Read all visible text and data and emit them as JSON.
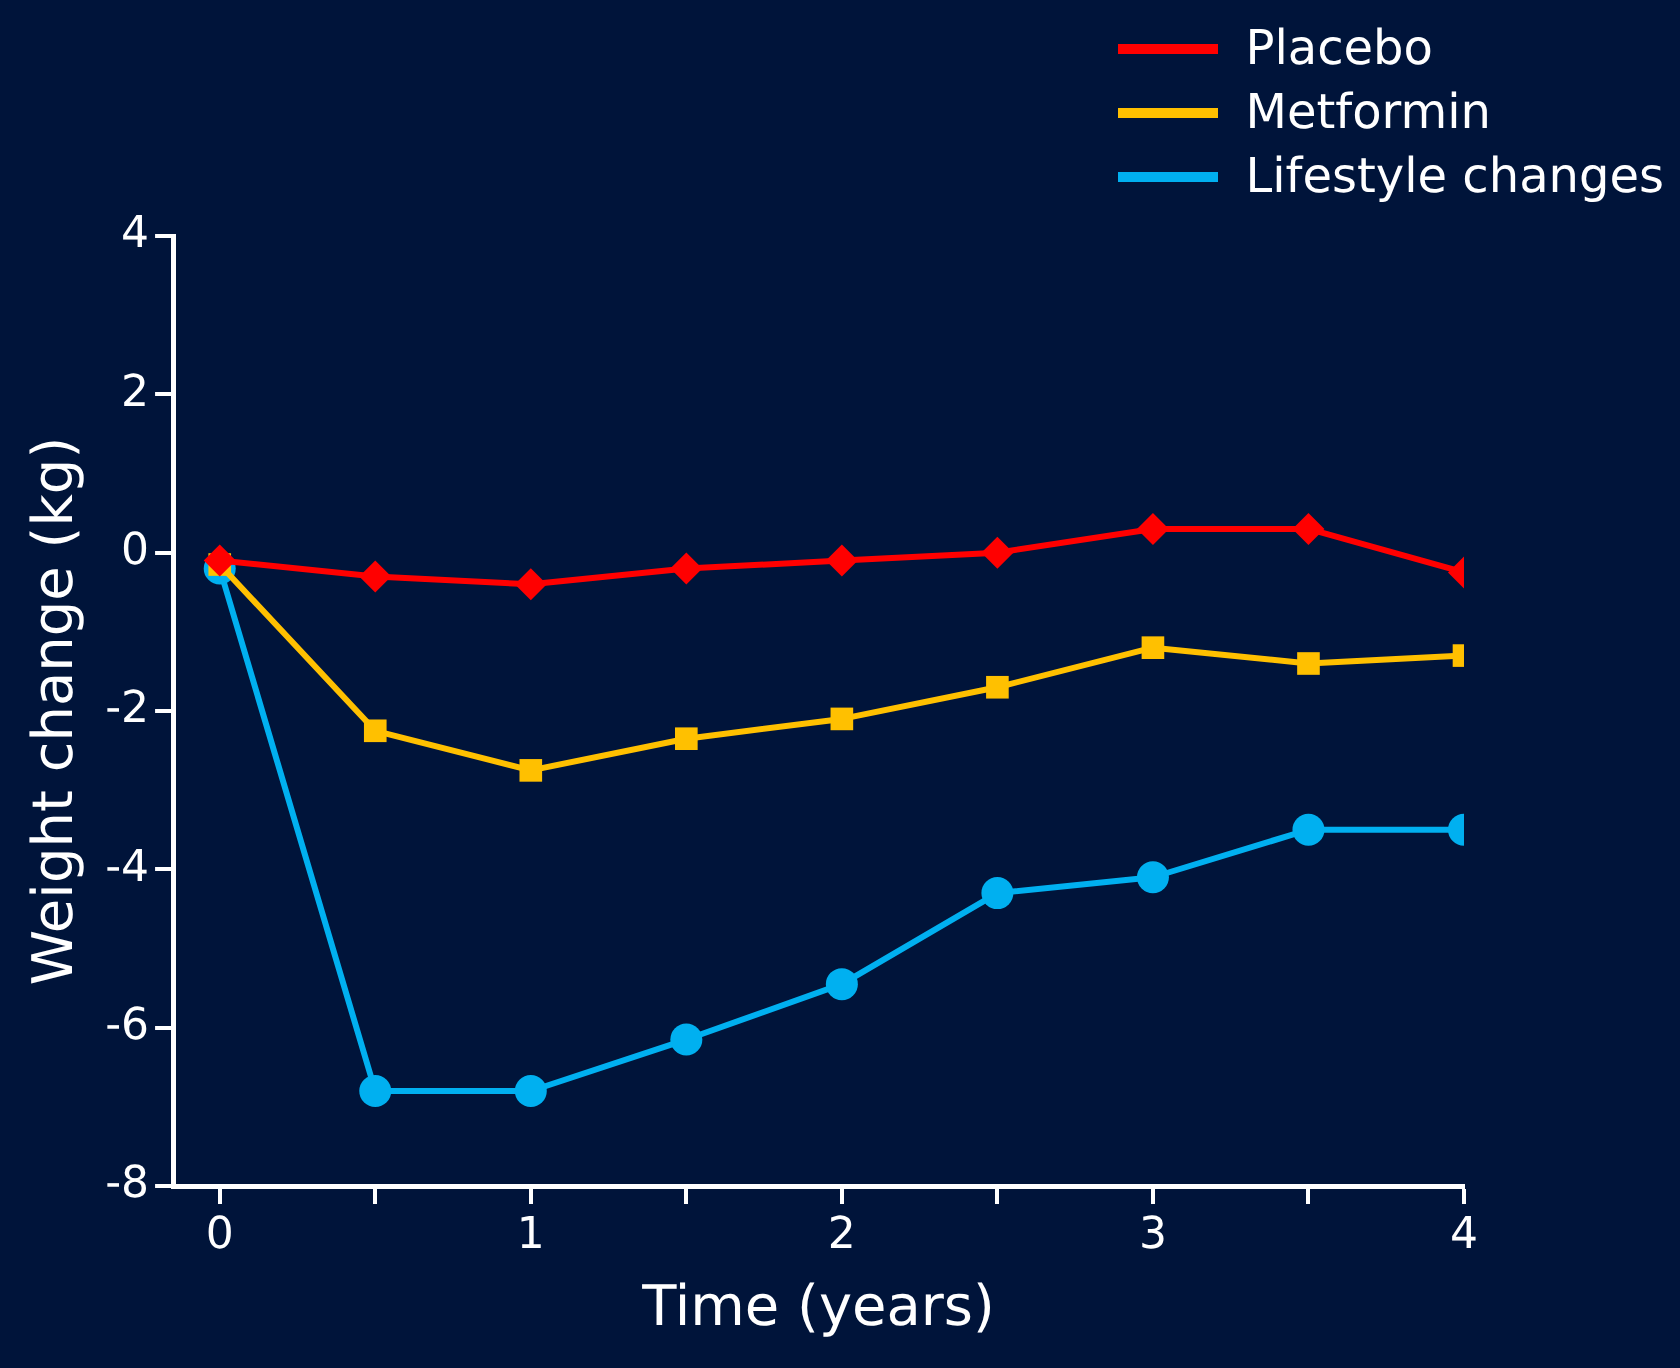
{
  "chart_data": {
    "type": "line",
    "xlabel": "Time (years)",
    "ylabel": "Weight change (kg)",
    "x": [
      0,
      0.5,
      1,
      1.5,
      2,
      2.5,
      3,
      3.5,
      4
    ],
    "series": [
      {
        "name": "Placebo",
        "color": "#ff0000",
        "marker": "diamond",
        "values": [
          -0.1,
          -0.3,
          -0.4,
          -0.2,
          -0.1,
          0.0,
          0.3,
          0.3,
          -0.25
        ]
      },
      {
        "name": "Metformin",
        "color": "#ffc000",
        "marker": "square",
        "values": [
          -0.15,
          -2.25,
          -2.75,
          -2.35,
          -2.1,
          -1.7,
          -1.2,
          -1.4,
          -1.3
        ]
      },
      {
        "name": "Lifestyle changes",
        "color": "#00b0f0",
        "marker": "circle",
        "values": [
          -0.2,
          -6.8,
          -6.8,
          -6.15,
          -5.45,
          -4.3,
          -4.1,
          -3.5,
          -3.5
        ]
      }
    ],
    "xlim": [
      -0.15,
      4
    ],
    "xticks": [
      0,
      {
        "value": 0.5,
        "label": null
      },
      1,
      {
        "value": 1.5,
        "label": null
      },
      2,
      {
        "value": 2.5,
        "label": null
      },
      3,
      {
        "value": 3.5,
        "label": null
      },
      4
    ],
    "ylim": [
      -8,
      4
    ],
    "yticks": [
      -8,
      -6,
      -4,
      -2,
      0,
      2,
      4
    ],
    "legend": "top right",
    "line_style": "solid"
  }
}
